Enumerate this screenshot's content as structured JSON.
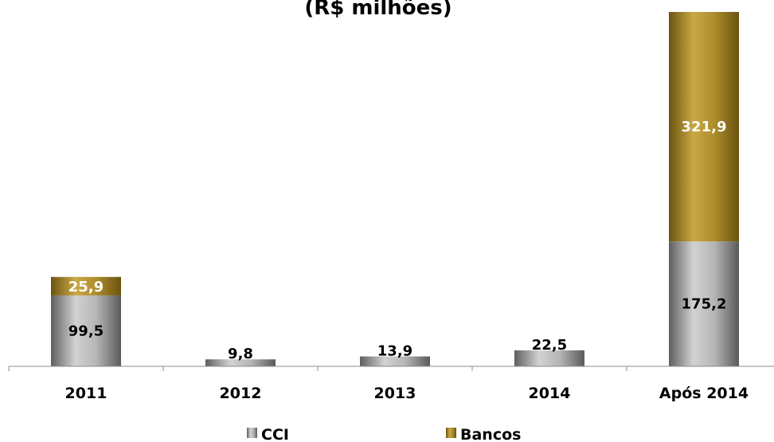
{
  "chart_data": {
    "type": "bar",
    "stacked": true,
    "title": "(R$ milhões)",
    "categories": [
      "2011",
      "2012",
      "2013",
      "2014",
      "Após 2014"
    ],
    "series": [
      {
        "name": "CCI",
        "values": [
          99.5,
          9.8,
          13.9,
          22.5,
          175.2
        ],
        "labels": [
          "99,5",
          "9,8",
          "13,9",
          "22,5",
          "175,2"
        ],
        "color": "#8a8a8a"
      },
      {
        "name": "Bancos",
        "values": [
          25.9,
          0,
          0,
          0,
          321.9
        ],
        "labels": [
          "25,9",
          "",
          "",
          "",
          "321,9"
        ],
        "color": "#9a7b1e"
      }
    ],
    "ylim": [
      0,
      497.1
    ],
    "grid": false,
    "legend_position": "bottom"
  }
}
